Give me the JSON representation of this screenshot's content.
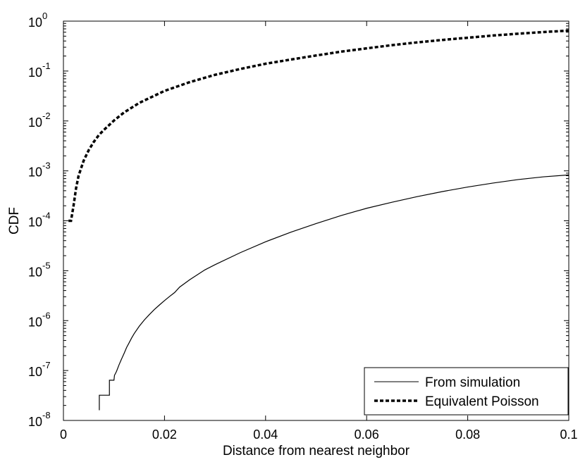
{
  "chart_data": {
    "type": "line",
    "xlabel": "Distance from nearest neighbor",
    "ylabel": "CDF",
    "xlim": [
      0,
      0.1
    ],
    "ylim": [
      1e-08,
      1
    ],
    "y_scale": "log",
    "grid": false,
    "legend_position": "bottom-right",
    "x_ticks": [
      {
        "value": 0,
        "label": "0"
      },
      {
        "value": 0.02,
        "label": "0.02"
      },
      {
        "value": 0.04,
        "label": "0.04"
      },
      {
        "value": 0.06,
        "label": "0.06"
      },
      {
        "value": 0.08,
        "label": "0.08"
      },
      {
        "value": 0.1,
        "label": "0.1"
      }
    ],
    "y_ticks": [
      {
        "value": 1e-08,
        "base": "10",
        "exp": "-8"
      },
      {
        "value": 1e-07,
        "base": "10",
        "exp": "-7"
      },
      {
        "value": 1e-06,
        "base": "10",
        "exp": "-6"
      },
      {
        "value": 1e-05,
        "base": "10",
        "exp": "-5"
      },
      {
        "value": 0.0001,
        "base": "10",
        "exp": "-4"
      },
      {
        "value": 0.001,
        "base": "10",
        "exp": "-3"
      },
      {
        "value": 0.01,
        "base": "10",
        "exp": "-2"
      },
      {
        "value": 0.1,
        "base": "10",
        "exp": "-1"
      },
      {
        "value": 1,
        "base": "10",
        "exp": "0"
      }
    ],
    "series": [
      {
        "name": "From simulation",
        "style": "solid",
        "color": "#000000",
        "points": [
          [
            0.0071,
            1.6e-08
          ],
          [
            0.0071,
            3.2e-08
          ],
          [
            0.0082,
            3.2e-08
          ],
          [
            0.0091,
            3.2e-08
          ],
          [
            0.0091,
            6.4e-08
          ],
          [
            0.01,
            6.4e-08
          ],
          [
            0.0101,
            8e-08
          ],
          [
            0.0105,
            9.6e-08
          ],
          [
            0.011,
            1.3e-07
          ],
          [
            0.0115,
            1.7e-07
          ],
          [
            0.012,
            2.2e-07
          ],
          [
            0.0125,
            2.9e-07
          ],
          [
            0.013,
            3.6e-07
          ],
          [
            0.0135,
            4.5e-07
          ],
          [
            0.014,
            5.5e-07
          ],
          [
            0.015,
            7.7e-07
          ],
          [
            0.016,
            1.03e-06
          ],
          [
            0.017,
            1.32e-06
          ],
          [
            0.018,
            1.67e-06
          ],
          [
            0.019,
            2.06e-06
          ],
          [
            0.02,
            2.52e-06
          ],
          [
            0.021,
            3.05e-06
          ],
          [
            0.022,
            3.65e-06
          ],
          [
            0.023,
            4.7e-06
          ],
          [
            0.025,
            6.6e-06
          ],
          [
            0.028,
            1.04e-05
          ],
          [
            0.03,
            1.32e-05
          ],
          [
            0.035,
            2.3e-05
          ],
          [
            0.04,
            3.8e-05
          ],
          [
            0.045,
            5.9e-05
          ],
          [
            0.05,
            8.8e-05
          ],
          [
            0.055,
            0.000128
          ],
          [
            0.06,
            0.000178
          ],
          [
            0.065,
            0.000235
          ],
          [
            0.07,
            0.000305
          ],
          [
            0.075,
            0.000385
          ],
          [
            0.08,
            0.000475
          ],
          [
            0.085,
            0.00057
          ],
          [
            0.09,
            0.00067
          ],
          [
            0.095,
            0.00076
          ],
          [
            0.1,
            0.00083
          ]
        ]
      },
      {
        "name": "Equivalent Poisson",
        "style": "dashed",
        "color": "#000000",
        "points": [
          [
            0.001,
            0.0001
          ],
          [
            0.0015,
            0.0001
          ],
          [
            0.002,
            0.0002
          ],
          [
            0.0025,
            0.00045
          ],
          [
            0.003,
            0.0008
          ],
          [
            0.004,
            0.0016
          ],
          [
            0.005,
            0.0026
          ],
          [
            0.006,
            0.0038
          ],
          [
            0.007,
            0.0052
          ],
          [
            0.008,
            0.0066
          ],
          [
            0.01,
            0.0102
          ],
          [
            0.012,
            0.0148
          ],
          [
            0.015,
            0.023
          ],
          [
            0.02,
            0.04
          ],
          [
            0.025,
            0.06
          ],
          [
            0.03,
            0.084
          ],
          [
            0.035,
            0.11
          ],
          [
            0.04,
            0.14
          ],
          [
            0.045,
            0.17
          ],
          [
            0.05,
            0.205
          ],
          [
            0.055,
            0.245
          ],
          [
            0.06,
            0.285
          ],
          [
            0.065,
            0.33
          ],
          [
            0.07,
            0.375
          ],
          [
            0.075,
            0.42
          ],
          [
            0.08,
            0.465
          ],
          [
            0.085,
            0.515
          ],
          [
            0.09,
            0.56
          ],
          [
            0.095,
            0.605
          ],
          [
            0.1,
            0.645
          ]
        ]
      }
    ]
  }
}
